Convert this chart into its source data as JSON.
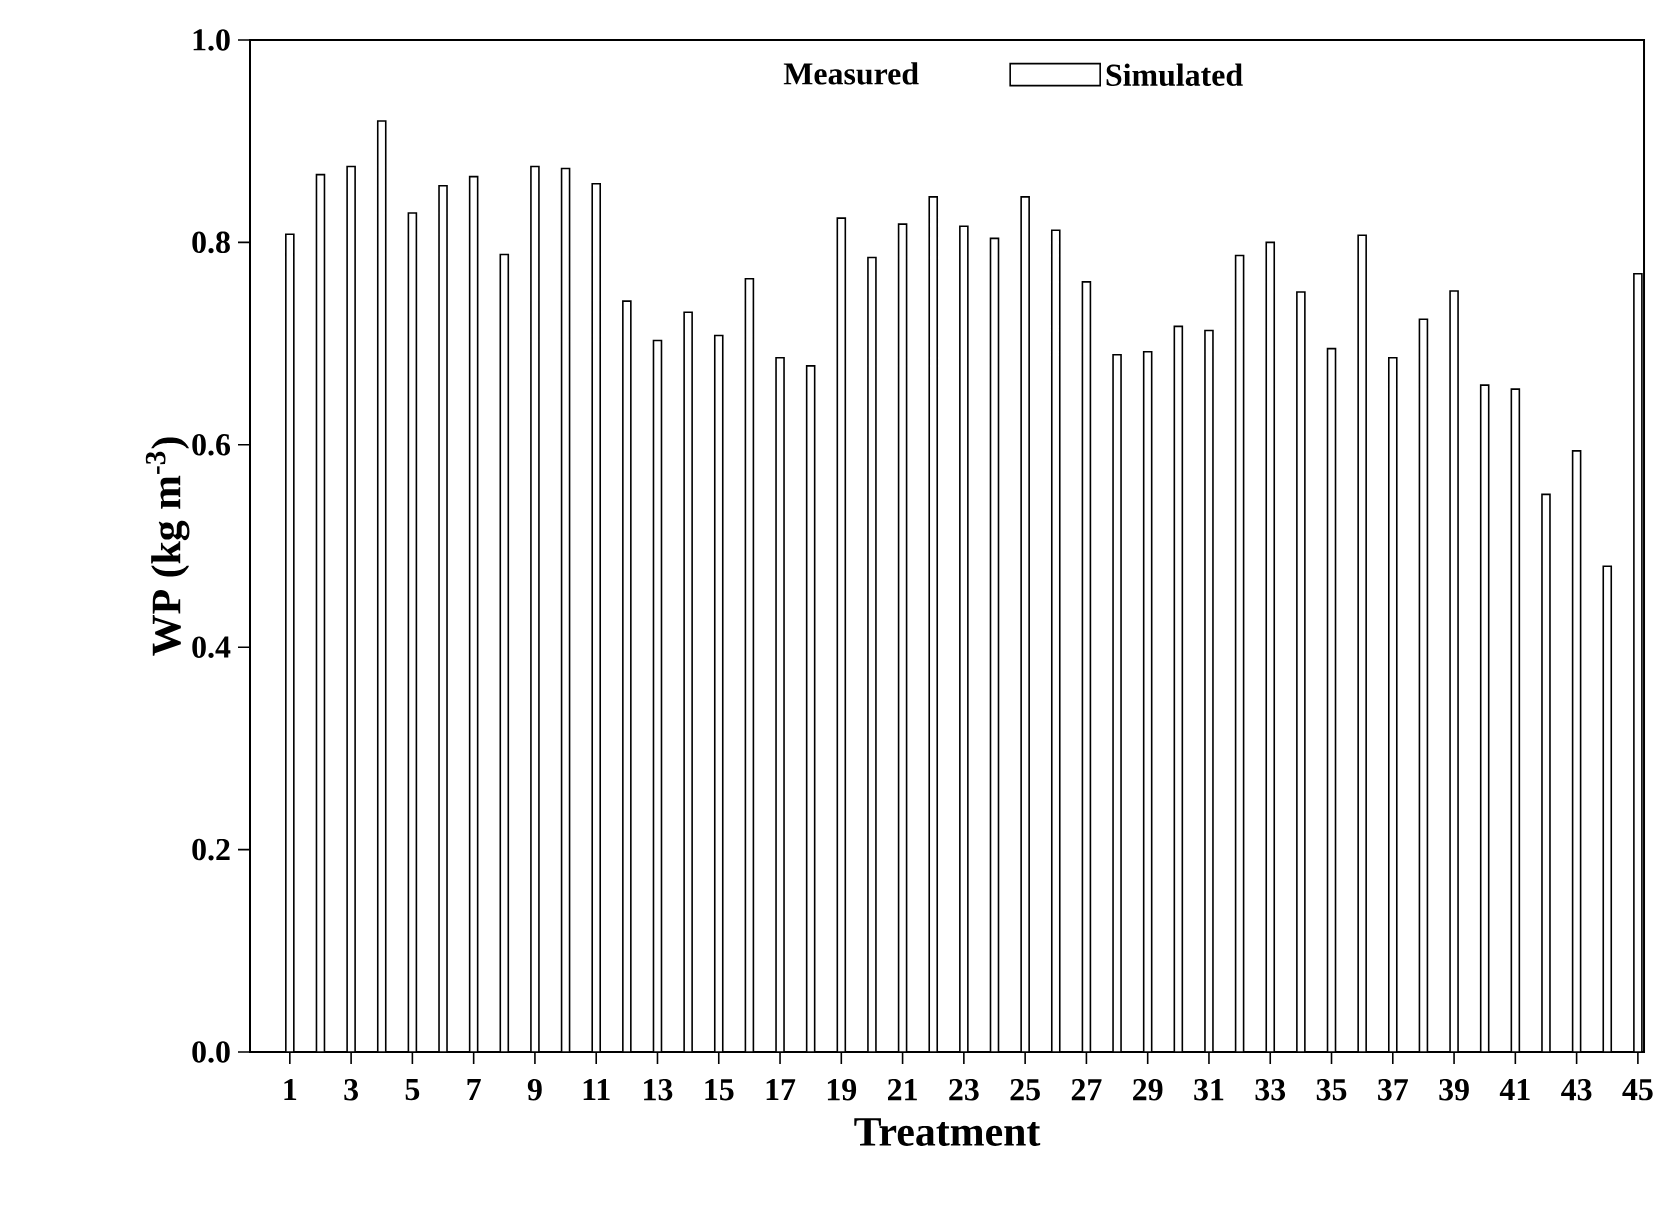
{
  "chart_data": {
    "type": "bar",
    "xlabel": "Treatment",
    "ylabel": "WP (kg m$^{-3}$)",
    "categories": [
      "1",
      null,
      "3",
      null,
      "5",
      null,
      "7",
      null,
      "9",
      null,
      "11",
      null,
      "13",
      null,
      "15",
      null,
      "17",
      null,
      "19",
      null,
      "21",
      null,
      "23",
      null,
      "25",
      null,
      "27",
      null,
      "29",
      null,
      "31",
      null,
      "33",
      null,
      "35",
      null,
      "37",
      null,
      "39",
      null,
      "41",
      null,
      "43",
      null,
      "45"
    ],
    "series": [
      {
        "name": "Simulated",
        "color": "#ffffff",
        "values": [
          0.808,
          0.867,
          0.875,
          0.92,
          0.829,
          0.856,
          0.865,
          0.788,
          0.875,
          0.873,
          0.858,
          0.742,
          0.703,
          0.731,
          0.708,
          0.764,
          0.686,
          0.678,
          0.824,
          0.785,
          0.818,
          0.845,
          0.816,
          0.804,
          0.845,
          0.812,
          0.761,
          0.689,
          0.692,
          0.717,
          0.713,
          0.787,
          0.8,
          0.751,
          0.695,
          0.807,
          0.686,
          0.724,
          0.752,
          0.659,
          0.655,
          0.551,
          0.594,
          0.48,
          0.769
        ]
      }
    ],
    "annotations": [
      "Measured"
    ],
    "ylim": [
      0,
      1.0
    ],
    "yticks": [
      {
        "value": 0,
        "label": "0.0"
      },
      {
        "value": 0.2,
        "label": "0.2"
      },
      {
        "value": 0.4,
        "label": "0.4"
      },
      {
        "value": 0.6,
        "label": "0.6"
      },
      {
        "value": 0.8,
        "label": "0.8"
      },
      {
        "value": 1.0,
        "label": "1.0"
      }
    ],
    "legend": "top"
  }
}
